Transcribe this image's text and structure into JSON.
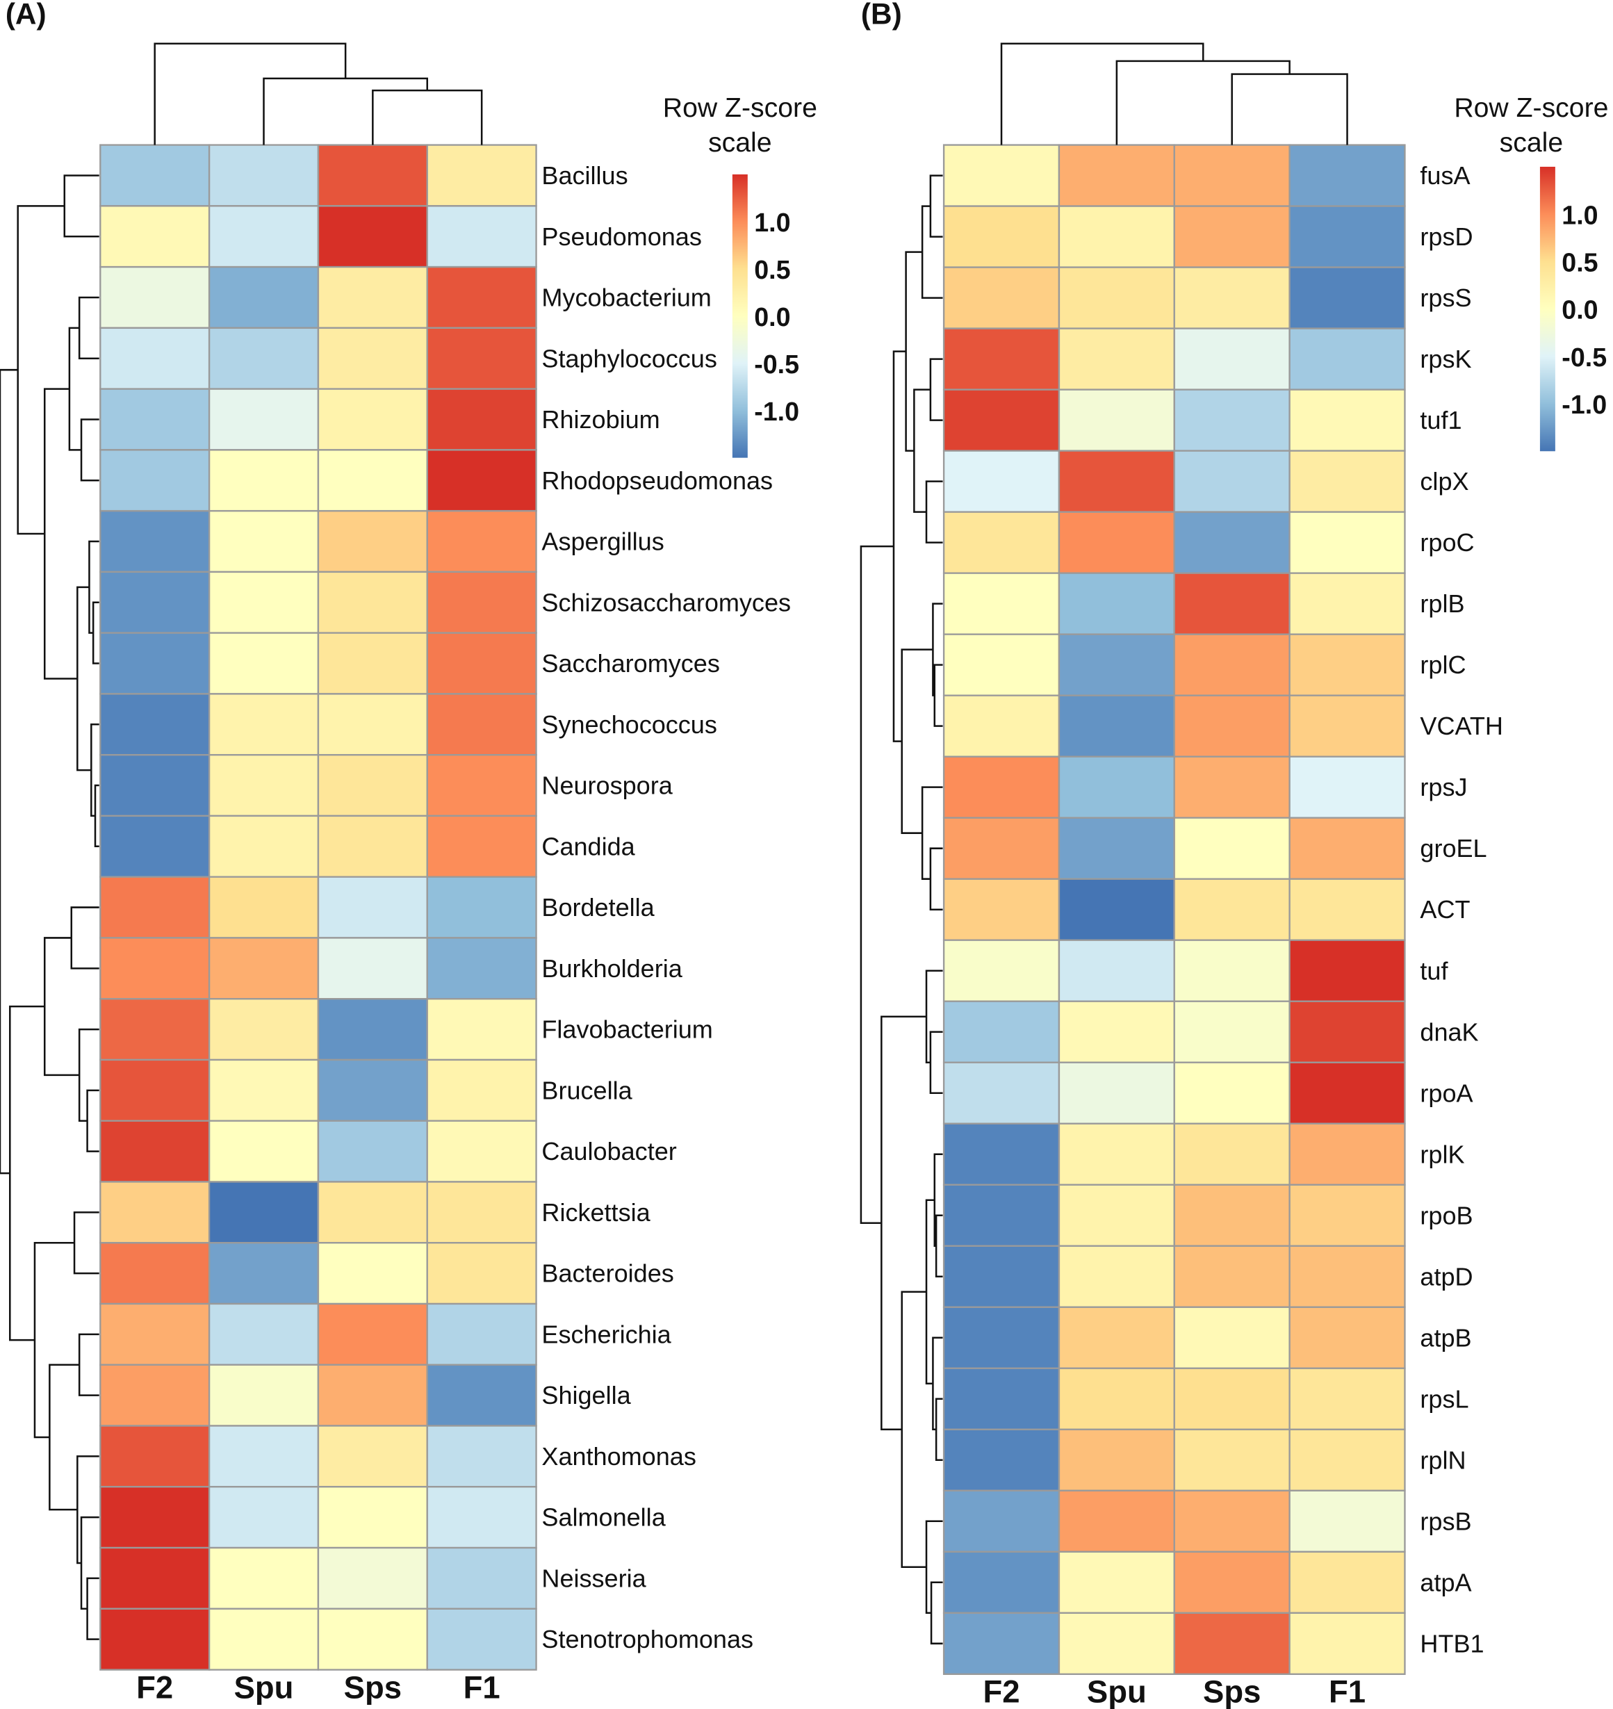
{
  "chart_data": [
    {
      "type": "heatmap",
      "panel_label": "(A)",
      "columns": [
        "F2",
        "Spu",
        "Sps",
        "F1"
      ],
      "rows": [
        "Bacillus",
        "Pseudomonas",
        "Mycobacterium",
        "Staphylococcus",
        "Rhizobium",
        "Rhodopseudomonas",
        "Aspergillus",
        "Schizosaccharomyces",
        "Saccharomyces",
        "Synechococcus",
        "Neurospora",
        "Candida",
        "Bordetella",
        "Burkholderia",
        "Flavobacterium",
        "Brucella",
        "Caulobacter",
        "Rickettsia",
        "Bacteroides",
        "Escherichia",
        "Shigella",
        "Xanthomonas",
        "Salmonella",
        "Neisseria",
        "Stenotrophomonas"
      ],
      "values": [
        [
          -0.9,
          -0.7,
          1.3,
          0.3
        ],
        [
          0.1,
          -0.6,
          1.5,
          -0.6
        ],
        [
          -0.3,
          -1.1,
          0.3,
          1.3
        ],
        [
          -0.6,
          -0.8,
          0.3,
          1.3
        ],
        [
          -0.9,
          -0.4,
          0.2,
          1.4
        ],
        [
          -0.9,
          0.0,
          0.0,
          1.5
        ],
        [
          -1.3,
          0.0,
          0.6,
          1.0
        ],
        [
          -1.3,
          0.0,
          0.4,
          1.1
        ],
        [
          -1.3,
          0.0,
          0.4,
          1.1
        ],
        [
          -1.4,
          0.2,
          0.2,
          1.1
        ],
        [
          -1.4,
          0.2,
          0.4,
          1.0
        ],
        [
          -1.4,
          0.2,
          0.4,
          1.0
        ],
        [
          1.1,
          0.5,
          -0.6,
          -1.0
        ],
        [
          1.0,
          0.8,
          -0.4,
          -1.1
        ],
        [
          1.2,
          0.3,
          -1.3,
          0.1
        ],
        [
          1.3,
          0.1,
          -1.2,
          0.2
        ],
        [
          1.4,
          0.0,
          -0.9,
          0.1
        ],
        [
          0.6,
          -1.5,
          0.4,
          0.4
        ],
        [
          1.1,
          -1.2,
          0.0,
          0.4
        ],
        [
          0.8,
          -0.7,
          1.0,
          -0.8
        ],
        [
          0.9,
          -0.1,
          0.8,
          -1.3
        ],
        [
          1.3,
          -0.6,
          0.3,
          -0.7
        ],
        [
          1.5,
          -0.6,
          0.0,
          -0.6
        ],
        [
          1.5,
          0.0,
          -0.2,
          -0.8
        ],
        [
          1.5,
          0.0,
          0.0,
          -0.8
        ]
      ],
      "legend": {
        "title_line1": "Row Z-score",
        "title_line2": "scale",
        "ticks": [
          "1.0",
          "0.5",
          "0.0",
          "-0.5",
          "-1.0"
        ],
        "tick_values": [
          1.0,
          0.5,
          0.0,
          -0.5,
          -1.0
        ],
        "range": [
          -1.5,
          1.5
        ]
      }
    },
    {
      "type": "heatmap",
      "panel_label": "(B)",
      "columns": [
        "F2",
        "Spu",
        "Sps",
        "F1"
      ],
      "rows": [
        "fusA",
        "rpsD",
        "rpsS",
        "rpsK",
        "tuf1",
        "clpX",
        "rpoC",
        "rplB",
        "rplC",
        "VCATH",
        "rpsJ",
        "groEL",
        "ACT",
        "tuf",
        "dnaK",
        "rpoA",
        "rplK",
        "rpoB",
        "atpD",
        "atpB",
        "rpsL",
        "rplN",
        "rpsB",
        "atpA",
        "HTB1"
      ],
      "values": [
        [
          0.1,
          0.8,
          0.8,
          -1.2
        ],
        [
          0.5,
          0.2,
          0.8,
          -1.3
        ],
        [
          0.6,
          0.4,
          0.3,
          -1.4
        ],
        [
          1.3,
          0.3,
          -0.4,
          -0.9
        ],
        [
          1.4,
          -0.2,
          -0.8,
          0.1
        ],
        [
          -0.5,
          1.3,
          -0.8,
          0.3
        ],
        [
          0.4,
          1.0,
          -1.2,
          0.0
        ],
        [
          0.0,
          -1.0,
          1.3,
          0.2
        ],
        [
          0.0,
          -1.2,
          0.9,
          0.6
        ],
        [
          0.2,
          -1.3,
          0.9,
          0.6
        ],
        [
          1.0,
          -1.0,
          0.8,
          -0.5
        ],
        [
          0.9,
          -1.2,
          0.0,
          0.8
        ],
        [
          0.6,
          -1.5,
          0.4,
          0.4
        ],
        [
          -0.1,
          -0.6,
          -0.1,
          1.5
        ],
        [
          -0.9,
          0.1,
          -0.1,
          1.4
        ],
        [
          -0.7,
          -0.3,
          0.0,
          1.5
        ],
        [
          -1.4,
          0.2,
          0.4,
          0.8
        ],
        [
          -1.4,
          0.2,
          0.7,
          0.6
        ],
        [
          -1.4,
          0.2,
          0.7,
          0.7
        ],
        [
          -1.4,
          0.6,
          0.1,
          0.7
        ],
        [
          -1.4,
          0.5,
          0.5,
          0.4
        ],
        [
          -1.4,
          0.7,
          0.4,
          0.4
        ],
        [
          -1.2,
          0.9,
          0.8,
          -0.2
        ],
        [
          -1.3,
          0.1,
          0.9,
          0.4
        ],
        [
          -1.2,
          0.1,
          1.2,
          0.2
        ]
      ],
      "legend": {
        "title_line1": "Row Z-score",
        "title_line2": "scale",
        "ticks": [
          "1.0",
          "0.5",
          "0.0",
          "-0.5",
          "-1.0"
        ],
        "tick_values": [
          1.0,
          0.5,
          0.0,
          -0.5,
          -1.0
        ],
        "range": [
          -1.5,
          1.5
        ]
      }
    }
  ],
  "colors": {
    "low": "#4575b4",
    "mid_low": "#91bfdb",
    "light_low": "#e0f3f8",
    "mid": "#ffffbf",
    "light_high": "#fee090",
    "mid_high": "#fc8d59",
    "high": "#d73027"
  }
}
